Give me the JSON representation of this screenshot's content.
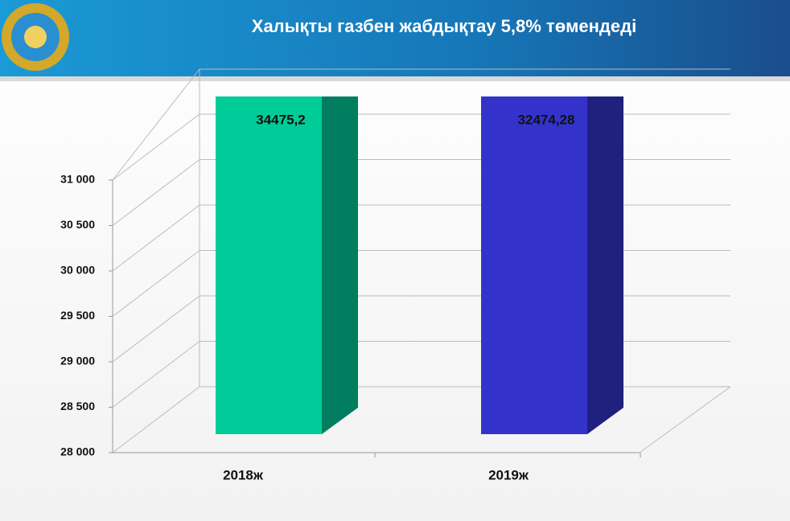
{
  "chart_data": {
    "type": "bar3d",
    "title": "Халықты газбен жабдықтау 5,8% төмендеді",
    "categories": [
      "2018ж",
      "2019ж"
    ],
    "values": [
      34475.2,
      32474.28
    ],
    "value_labels": [
      "34475,2",
      "32474,28"
    ],
    "colors": [
      "#00cc99",
      "#3333cc"
    ],
    "ylim": [
      28000,
      31000
    ],
    "yticks": [
      {
        "value": 28000,
        "label": "28 000"
      },
      {
        "value": 28500,
        "label": "28 500"
      },
      {
        "value": 29000,
        "label": "29 000"
      },
      {
        "value": 29500,
        "label": "29 500"
      },
      {
        "value": 30000,
        "label": "30 000"
      },
      {
        "value": 30500,
        "label": "30 500"
      },
      {
        "value": 31000,
        "label": "31 000"
      }
    ],
    "grid": true
  }
}
